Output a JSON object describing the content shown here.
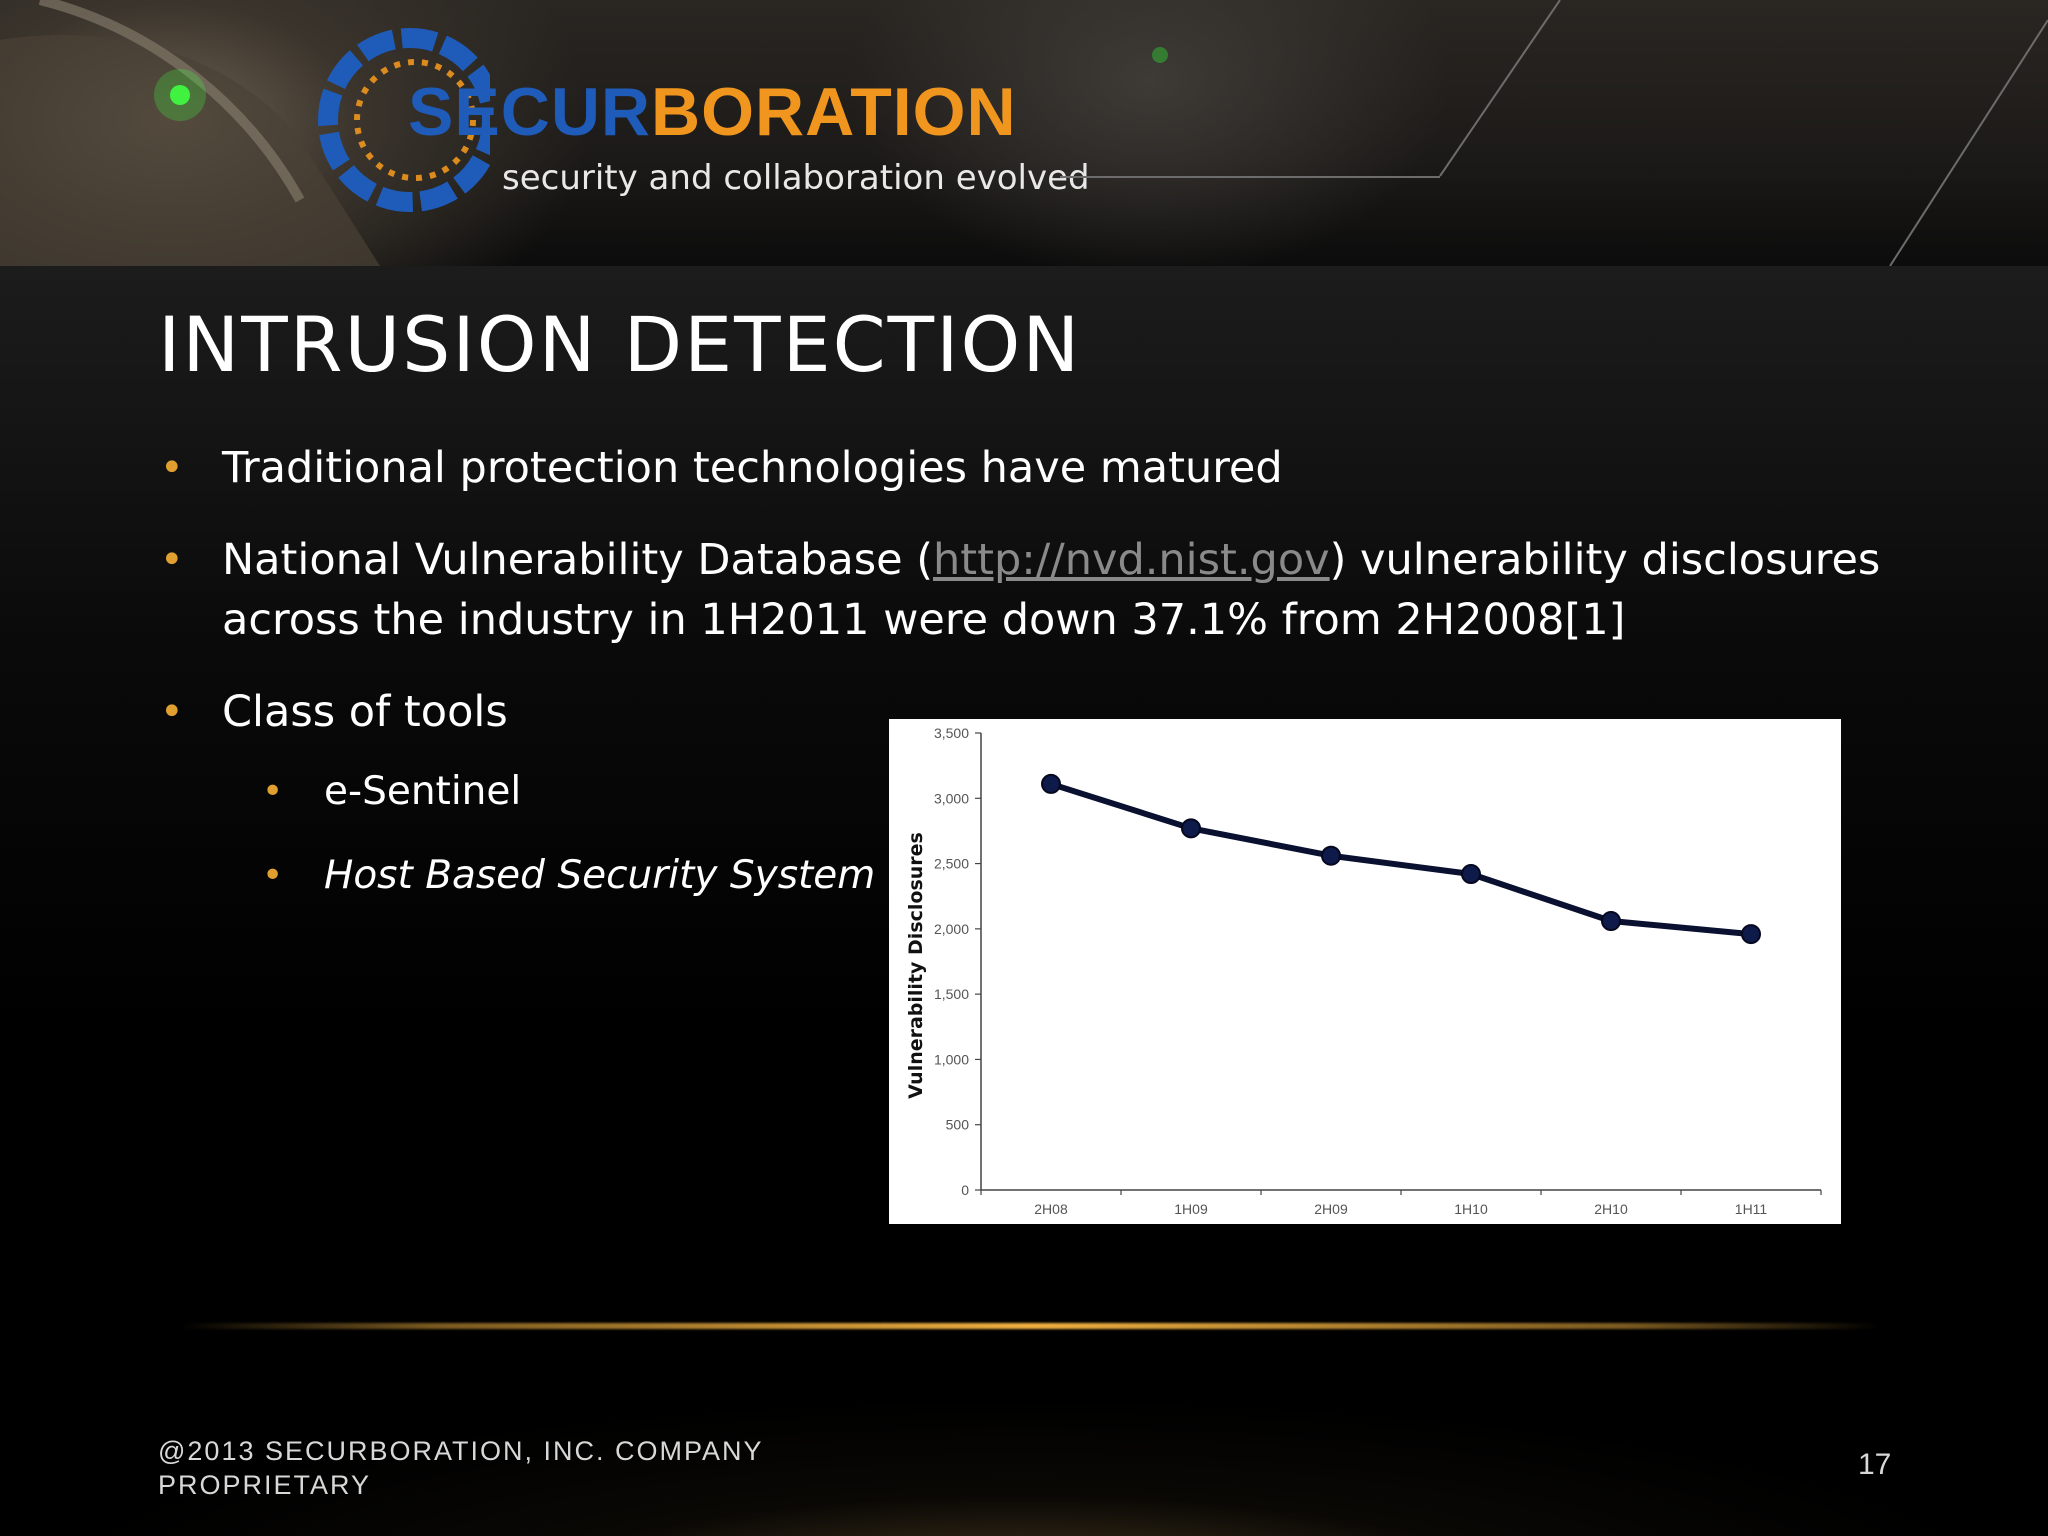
{
  "header": {
    "logo_part_a": "SECUR",
    "logo_part_b": "BORATION",
    "tagline": "security and collaboration evolved",
    "colors": {
      "logo_blue": "#1f5bb8",
      "logo_orange": "#f0961e",
      "bullet": "#e0a030"
    }
  },
  "slide": {
    "title": "INTRUSION DETECTION",
    "bullets": [
      {
        "text": "Traditional protection technologies have matured"
      },
      {
        "text_before": "National Vulnerability Database (",
        "link": "http://nvd.nist.gov",
        "text_after": ") vulnerability disclosures across the industry in 1H2011 were down 37.1% from 2H2008[1]"
      },
      {
        "text": "Class of tools"
      }
    ],
    "sub_bullets": [
      {
        "text": "e-Sentinel",
        "italic": false
      },
      {
        "text": "Host Based Security System",
        "italic": true
      }
    ]
  },
  "chart_data": {
    "type": "line",
    "title": "",
    "xlabel": "",
    "ylabel": "Vulnerability Disclosures",
    "categories": [
      "2H08",
      "1H09",
      "2H09",
      "1H10",
      "2H10",
      "1H11"
    ],
    "values": [
      3110,
      2770,
      2560,
      2420,
      2060,
      1960
    ],
    "yticks": [
      "0",
      "500",
      "1,000",
      "1,500",
      "2,000",
      "2,500",
      "3,000",
      "3,500"
    ],
    "ylim": [
      0,
      3500
    ],
    "grid": false,
    "legend": "none",
    "line_color": "#0a1030",
    "marker_color": "#0d1a4a"
  },
  "footer": {
    "copyright": "@2013 SECURBORATION, INC.   COMPANY PROPRIETARY",
    "page_number": "17"
  }
}
